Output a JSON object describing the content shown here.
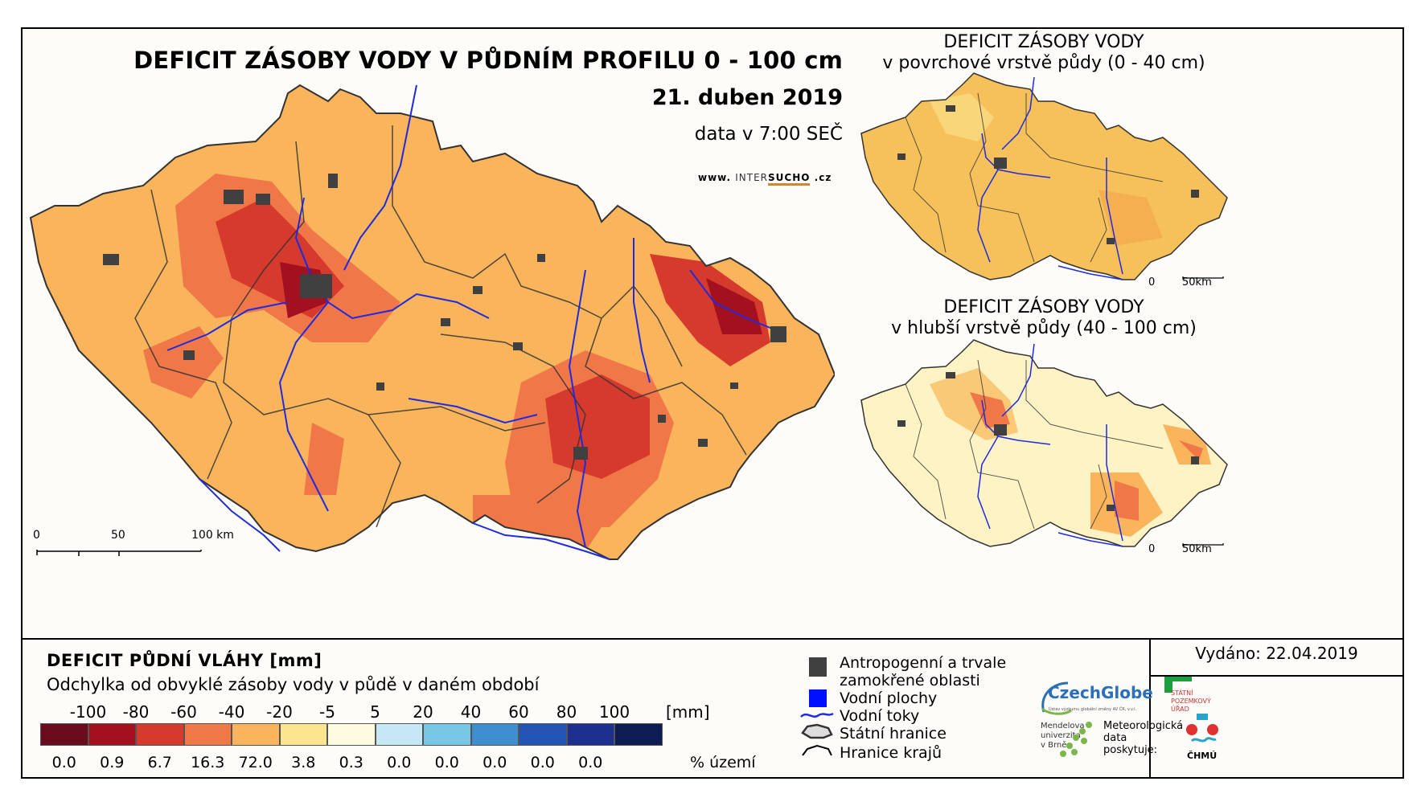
{
  "main": {
    "title": "DEFICIT ZÁSOBY VODY V PŮDNÍM PROFILU 0 - 100 cm",
    "date": "21. duben 2019",
    "data_time": "data v 7:00 SEČ",
    "web_prefix": "www.",
    "web_name_a": "INTER",
    "web_name_b": "SUCHO",
    "web_suffix": ".cz",
    "scale_labels": [
      "0",
      "50",
      "100 km"
    ]
  },
  "inset_top": {
    "title_line1": "DEFICIT ZÁSOBY VODY",
    "title_line2": "v povrchové vrstvě půdy (0 - 40 cm)",
    "scale_labels": [
      "0",
      "50km"
    ]
  },
  "inset_bottom": {
    "title_line1": "DEFICIT ZÁSOBY VODY",
    "title_line2": "v hlubší vrstvě půdy (40 - 100 cm)",
    "scale_labels": [
      "0",
      "50km"
    ]
  },
  "legend": {
    "title": "DEFICIT PŮDNÍ VLÁHY [mm]",
    "subtitle": "Odchylka od obvyklé zásoby vody v půdě v daném období",
    "ticks": [
      "-100",
      "-80",
      "-60",
      "-40",
      "-20",
      "-5",
      "5",
      "20",
      "40",
      "60",
      "80",
      "100"
    ],
    "unit": "[mm]",
    "classes": [
      {
        "color": "#6b0b1e",
        "pct": "0.0"
      },
      {
        "color": "#a3101f",
        "pct": "0.9"
      },
      {
        "color": "#d63a2c",
        "pct": "6.7"
      },
      {
        "color": "#f07748",
        "pct": "16.3"
      },
      {
        "color": "#f9b45c",
        "pct": "72.0"
      },
      {
        "color": "#fde48f",
        "pct": "3.8"
      },
      {
        "color": "#fffbe0",
        "pct": "0.3"
      },
      {
        "color": "#c5e8f4",
        "pct": "0.0"
      },
      {
        "color": "#79c7e6",
        "pct": "0.0"
      },
      {
        "color": "#3f8fd0",
        "pct": "0.0"
      },
      {
        "color": "#2255b3",
        "pct": "0.0"
      },
      {
        "color": "#1d2f8f",
        "pct": "0.0"
      },
      {
        "color": "#0d1d54",
        "pct": ""
      }
    ],
    "pct_unit": "% území"
  },
  "key": {
    "urban_line1": "Antropogenní a trvale",
    "urban_line2": "zamokřené oblasti",
    "water_bodies": "Vodní plochy",
    "rivers": "Vodní toky",
    "state_border": "Státní hranice",
    "region_border": "Hranice krajů"
  },
  "issued": "Vydáno: 22.04.2019",
  "logos": {
    "czechglobe": "CzechGlobe",
    "czechglobe_sub": "Ústav výzkumu globální změny AV ČR, v.v.i.",
    "spu_line1": "STÁTNÍ",
    "spu_line2": "POZEMKOVÝ",
    "spu_line3": "ÚŘAD",
    "mendel_line1": "Mendelova",
    "mendel_line2": "univerzita",
    "mendel_line3": "v Brně",
    "meteo_line1": "Meteorologická",
    "meteo_line2": "data",
    "meteo_line3": "poskytuje:",
    "chmu": "ČHMÚ"
  },
  "colors": {
    "main_fill": "#f9b45c",
    "top_inset_fill": "#f6c05a",
    "bottom_inset_fill": "#fdf3c4",
    "river": "#1e2be0",
    "urban": "#404040"
  }
}
